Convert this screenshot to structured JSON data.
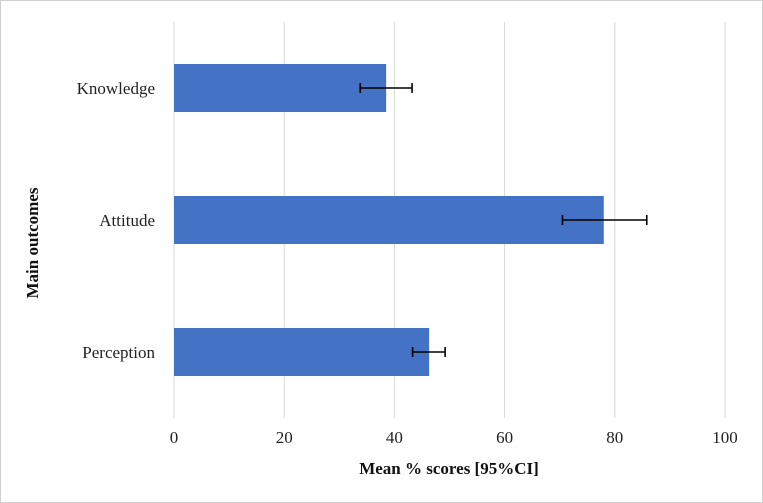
{
  "chart_data": {
    "type": "bar",
    "orientation": "horizontal",
    "categories": [
      "Knowledge",
      "Attitude",
      "Perception"
    ],
    "values": [
      38.5,
      78.0,
      46.3
    ],
    "ci_lower": [
      33.8,
      70.5,
      43.3
    ],
    "ci_upper": [
      43.2,
      85.8,
      49.2
    ],
    "xlabel": "Mean % scores [95%CI]",
    "ylabel": "Main outcomes",
    "xlim": [
      0,
      100
    ],
    "xticks": [
      "0",
      "20",
      "40",
      "60",
      "80",
      "100"
    ],
    "grid": "vertical",
    "bar_color": "#4472c4",
    "error_bar_color": "#000000"
  }
}
